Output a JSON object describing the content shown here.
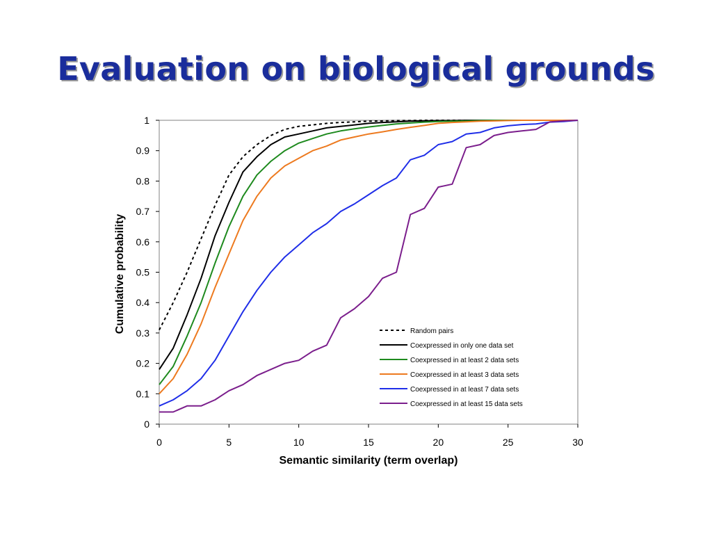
{
  "slide": {
    "title": "Evaluation on biological grounds"
  },
  "chart_data": {
    "type": "line",
    "xlabel": "Semantic similarity (term overlap)",
    "ylabel": "Cumulative probability",
    "xlim": [
      0,
      30
    ],
    "ylim": [
      0,
      1
    ],
    "x_ticks": [
      0,
      5,
      10,
      15,
      20,
      25,
      30
    ],
    "x_tick_labels": [
      "0",
      "5",
      "10",
      "15",
      "20",
      "25",
      "30"
    ],
    "y_ticks": [
      0,
      0.1,
      0.2,
      0.3,
      0.4,
      0.5,
      0.6,
      0.7,
      0.8,
      0.9,
      1
    ],
    "y_tick_labels": [
      "0",
      "0.1",
      "0.2",
      "0.3",
      "0.4",
      "0.5",
      "0.6",
      "0.7",
      "0.8",
      "0.9",
      "1"
    ],
    "grid": false,
    "legend_position": "lower-right",
    "x": [
      0,
      1,
      2,
      3,
      4,
      5,
      6,
      7,
      8,
      9,
      10,
      11,
      12,
      13,
      14,
      15,
      16,
      17,
      18,
      19,
      20,
      21,
      22,
      23,
      24,
      25,
      26,
      27,
      28,
      29,
      30
    ],
    "series": [
      {
        "name": "Random pairs",
        "color": "#000000",
        "dash": true,
        "values": [
          0.31,
          0.4,
          0.5,
          0.61,
          0.72,
          0.82,
          0.88,
          0.92,
          0.95,
          0.97,
          0.98,
          0.985,
          0.99,
          0.993,
          0.995,
          0.997,
          0.998,
          0.999,
          0.999,
          1,
          1,
          1,
          1,
          1,
          1,
          1,
          1,
          1,
          1,
          1,
          1
        ]
      },
      {
        "name": "Coexpressed in only one data set",
        "color": "#000000",
        "dash": false,
        "values": [
          0.18,
          0.25,
          0.36,
          0.48,
          0.62,
          0.73,
          0.83,
          0.88,
          0.92,
          0.945,
          0.955,
          0.965,
          0.975,
          0.98,
          0.985,
          0.99,
          0.993,
          0.995,
          0.997,
          0.998,
          0.999,
          0.999,
          1,
          1,
          1,
          1,
          1,
          1,
          1,
          1,
          1
        ]
      },
      {
        "name": "Coexpressed in at least 2 data sets",
        "color": "#1e8a1e",
        "dash": false,
        "values": [
          0.13,
          0.19,
          0.29,
          0.4,
          0.53,
          0.65,
          0.75,
          0.82,
          0.865,
          0.9,
          0.925,
          0.94,
          0.955,
          0.965,
          0.972,
          0.978,
          0.983,
          0.988,
          0.991,
          0.994,
          0.996,
          0.997,
          0.998,
          0.999,
          1,
          1,
          1,
          1,
          1,
          1,
          1
        ]
      },
      {
        "name": "Coexpressed in at least 3 data sets",
        "color": "#ed7a1f",
        "dash": false,
        "values": [
          0.1,
          0.15,
          0.23,
          0.33,
          0.45,
          0.56,
          0.67,
          0.75,
          0.81,
          0.85,
          0.875,
          0.9,
          0.915,
          0.935,
          0.945,
          0.955,
          0.962,
          0.97,
          0.977,
          0.983,
          0.99,
          0.993,
          0.995,
          0.997,
          0.998,
          0.999,
          1,
          1,
          1,
          1,
          1
        ]
      },
      {
        "name": "Coexpressed in at least 7 data sets",
        "color": "#1f2ee8",
        "dash": false,
        "values": [
          0.06,
          0.08,
          0.11,
          0.15,
          0.21,
          0.29,
          0.37,
          0.44,
          0.5,
          0.55,
          0.59,
          0.63,
          0.66,
          0.7,
          0.725,
          0.755,
          0.785,
          0.81,
          0.87,
          0.885,
          0.92,
          0.93,
          0.955,
          0.96,
          0.975,
          0.982,
          0.986,
          0.988,
          0.994,
          0.996,
          1
        ]
      },
      {
        "name": "Coexpressed in at least 15 data sets",
        "color": "#7b1e8c",
        "dash": false,
        "values": [
          0.04,
          0.04,
          0.06,
          0.06,
          0.08,
          0.11,
          0.13,
          0.16,
          0.18,
          0.2,
          0.21,
          0.24,
          0.26,
          0.35,
          0.38,
          0.42,
          0.48,
          0.5,
          0.69,
          0.71,
          0.78,
          0.79,
          0.91,
          0.92,
          0.95,
          0.96,
          0.965,
          0.97,
          0.995,
          0.998,
          1
        ]
      }
    ]
  }
}
